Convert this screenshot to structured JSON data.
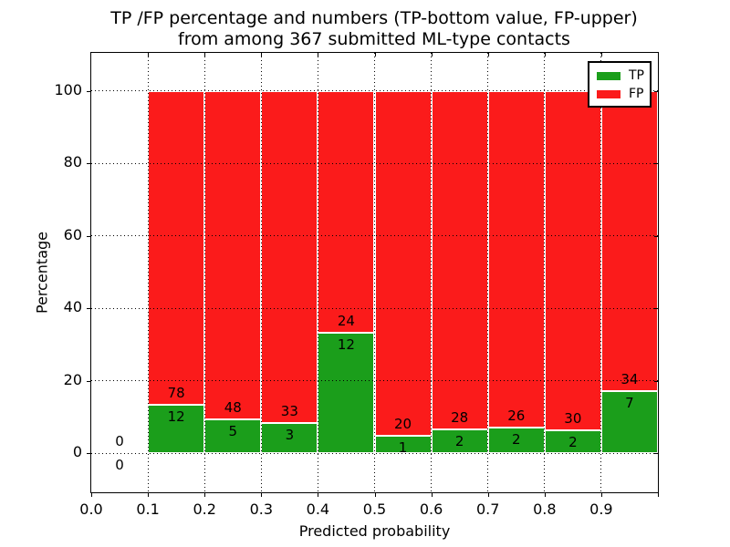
{
  "chart_data": {
    "type": "bar",
    "stacked": true,
    "title_line1": "TP /FP percentage and numbers (TP-bottom value, FP-upper)",
    "title_line2": "from among 367 submitted ML-type contacts",
    "xlabel": "Predicted probability",
    "ylabel": "Percentage",
    "bin_edges": [
      0.0,
      0.1,
      0.2,
      0.3,
      0.4,
      0.5,
      0.6,
      0.7,
      0.8,
      0.9,
      1.0
    ],
    "x_tick_labels": [
      "0.0",
      "0.1",
      "0.2",
      "0.3",
      "0.4",
      "0.5",
      "0.6",
      "0.7",
      "0.8",
      "0.9"
    ],
    "y_tick_values": [
      0,
      20,
      40,
      60,
      80,
      100
    ],
    "y_tick_labels": [
      "0",
      "20",
      "40",
      "60",
      "80",
      "100"
    ],
    "xlim": [
      0.0,
      1.0
    ],
    "ylim": [
      -10.8,
      110.5
    ],
    "grid_style": "dotted",
    "grid_color": "#000000",
    "bar_edge_color": "#ffffff",
    "series": [
      {
        "name": "TP",
        "color": "#1b9e1b",
        "counts": [
          0,
          12,
          5,
          3,
          12,
          1,
          2,
          2,
          2,
          7
        ]
      },
      {
        "name": "FP",
        "color": "#fb1b1b",
        "counts": [
          0,
          78,
          48,
          33,
          24,
          20,
          28,
          26,
          30,
          34
        ]
      }
    ],
    "tp_percent_of_bin": [
      0,
      13.3,
      9.4,
      8.3,
      33.3,
      4.8,
      6.7,
      7.1,
      6.3,
      17.1
    ],
    "bar_total_height_percent": 100,
    "legend": {
      "position": "upper right",
      "entries": [
        {
          "label": "TP",
          "color": "#1b9e1b"
        },
        {
          "label": "FP",
          "color": "#fb1b1b"
        }
      ]
    }
  }
}
